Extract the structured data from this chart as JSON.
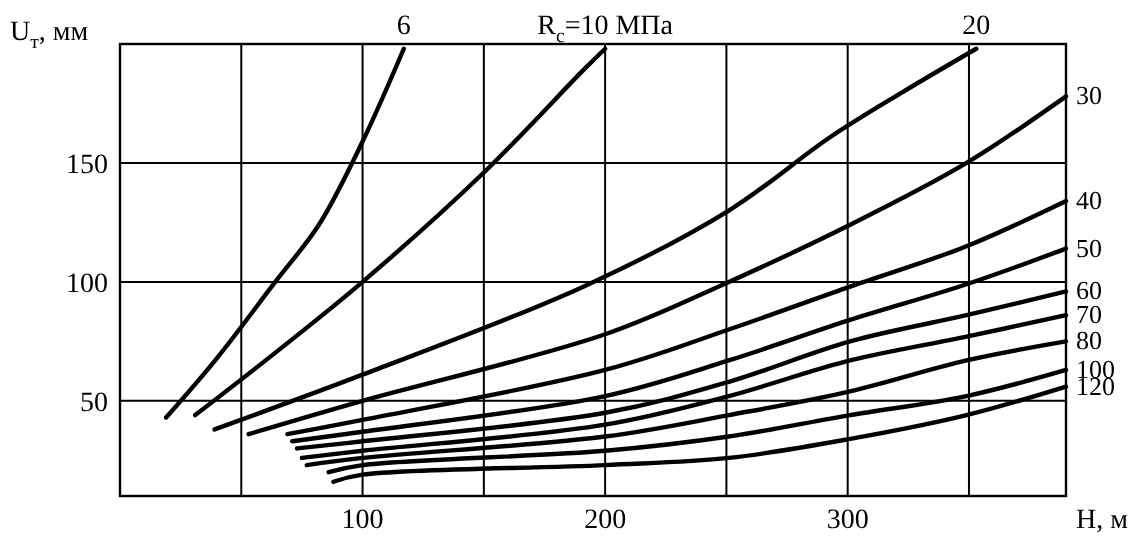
{
  "chart_data": {
    "type": "line",
    "xlabel": "H, м",
    "ylabel": "U$_{т}$, мм",
    "xlim": [
      0,
      390
    ],
    "ylim": [
      10,
      200
    ],
    "xticks": [
      {
        "value": 50,
        "label": null
      },
      100,
      {
        "value": 150,
        "label": null
      },
      200,
      {
        "value": 250,
        "label": null
      },
      300,
      {
        "value": 350,
        "label": null
      }
    ],
    "yticks": [
      50,
      100,
      150
    ],
    "grid": true,
    "marker": "none",
    "line_style": "solid",
    "series": [
      {
        "name": "6",
        "color": "#000000",
        "x": [
          19,
          40,
          64,
          82,
          100,
          117
        ],
        "values": [
          43,
          68,
          100,
          124,
          159,
          198
        ]
      },
      {
        "name": "R$_{с}$=10 МПа",
        "color": "#000000",
        "x": [
          31,
          65,
          100,
          150,
          191,
          200
        ],
        "values": [
          44,
          71,
          100,
          146,
          189,
          198
        ]
      },
      {
        "name": "20",
        "color": "#000000",
        "x": [
          39,
          100,
          191,
          251,
          293,
          323,
          353
        ],
        "values": [
          38,
          61,
          98,
          130,
          161,
          180,
          198
        ]
      },
      {
        "name": "30",
        "color": "#000000",
        "x": [
          53,
          100,
          200,
          251,
          301,
          349,
          390
        ],
        "values": [
          36,
          50,
          78,
          100,
          124,
          150,
          178
        ]
      },
      {
        "name": "40",
        "color": "#000000",
        "x": [
          69,
          100,
          200,
          251,
          301,
          349,
          390
        ],
        "values": [
          36,
          42,
          63,
          80,
          98,
          115,
          134
        ]
      },
      {
        "name": "50",
        "color": "#000000",
        "x": [
          71,
          100,
          200,
          251,
          301,
          349,
          390
        ],
        "values": [
          33,
          37,
          52,
          67,
          84,
          99,
          114
        ]
      },
      {
        "name": "60",
        "color": "#000000",
        "x": [
          73,
          100,
          200,
          251,
          301,
          349,
          390
        ],
        "values": [
          30,
          33,
          45,
          58,
          75,
          86,
          96
        ]
      },
      {
        "name": "70",
        "color": "#000000",
        "x": [
          75,
          100,
          200,
          251,
          301,
          349,
          390
        ],
        "values": [
          26,
          29,
          40,
          52,
          67,
          77,
          86
        ]
      },
      {
        "name": "80",
        "color": "#000000",
        "x": [
          77,
          100,
          200,
          251,
          301,
          349,
          390
        ],
        "values": [
          23,
          26,
          35,
          44,
          54,
          67,
          75
        ]
      },
      {
        "name": "100",
        "color": "#000000",
        "x": [
          86,
          100,
          200,
          251,
          301,
          349,
          390
        ],
        "values": [
          20,
          23,
          29,
          35,
          44,
          52,
          63
        ]
      },
      {
        "name": "120",
        "color": "#000000",
        "x": [
          88,
          100,
          200,
          251,
          301,
          349,
          390
        ],
        "values": [
          16,
          19,
          23,
          26,
          34,
          44,
          56
        ]
      }
    ]
  }
}
